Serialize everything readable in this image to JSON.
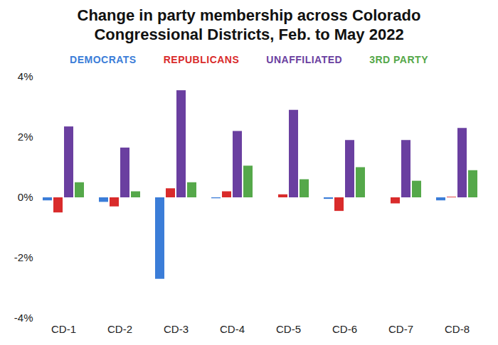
{
  "chart_data": {
    "type": "bar",
    "title": "Change in party membership across Colorado Congressional Districts, Feb. to May 2022",
    "categories": [
      "CD-1",
      "CD-2",
      "CD-3",
      "CD-4",
      "CD-5",
      "CD-6",
      "CD-7",
      "CD-8"
    ],
    "series": [
      {
        "name": "DEMOCRATS",
        "color": "#3b7dd8",
        "values": [
          -0.1,
          -0.15,
          -2.7,
          -0.03,
          0.0,
          -0.05,
          0.0,
          -0.1
        ]
      },
      {
        "name": "REPUBLICANS",
        "color": "#d92b2b",
        "values": [
          -0.5,
          -0.3,
          0.3,
          0.2,
          0.1,
          -0.45,
          -0.2,
          0.02
        ]
      },
      {
        "name": "UNAFFILIATED",
        "color": "#6a3fa0",
        "values": [
          2.35,
          1.65,
          3.55,
          2.2,
          2.9,
          1.9,
          1.9,
          2.3
        ]
      },
      {
        "name": "3RD PARTY",
        "color": "#55a84a",
        "values": [
          0.5,
          0.2,
          0.5,
          1.05,
          0.6,
          1.0,
          0.55,
          0.9
        ]
      }
    ],
    "ylim": [
      -4,
      4
    ],
    "yticks": [
      {
        "value": -4,
        "label": "-4%"
      },
      {
        "value": -2,
        "label": "-2%"
      },
      {
        "value": 0,
        "label": "0%"
      },
      {
        "value": 2,
        "label": "2%"
      },
      {
        "value": 4,
        "label": "4%"
      }
    ],
    "grid": false,
    "legend": "top"
  }
}
